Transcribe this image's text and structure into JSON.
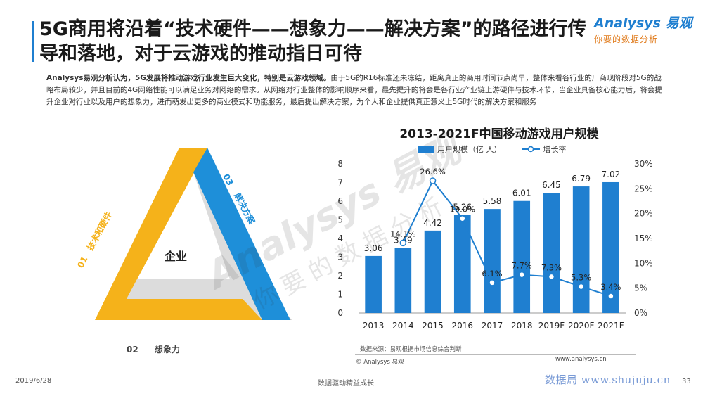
{
  "header": {
    "title": "5G商用将沿着“技术硬件——想象力——解决方案”的路径进行传导和落地，对于云游戏的推动指日可待",
    "logo_main": "Analysys 易观",
    "logo_sub": "你要的数据分析"
  },
  "intro": {
    "lead": "Analysys易观分析认为，5G发展将推动游戏行业发生巨大变化，特别是云游戏领域。",
    "body": "由于5G的R16标准还未冻结，距离真正的商用时间节点尚早，整体来看各行业的厂商现阶段对5G的战略布局较少，并且目前的4G网络性能可以满足业务对网络的需求。从网络对行业整体的影响顺序来看，最先提升的将会是各行业产业链上游硬件与技术环节，当企业具备核心能力后，将会提升企业对行业以及用户的想象力，进而萌发出更多的商业模式和功能服务，最后提出解决方案，为个人和企业提供真正意义上5G时代的解决方案和服务"
  },
  "triangle": {
    "center": "企业",
    "side1_num": "01",
    "side1_label": "技术和硬件",
    "side2_num": "02",
    "side2_label": "想象力",
    "side3_num": "03",
    "side3_label": "解决方案",
    "colors": {
      "yellow": "#f5b21a",
      "blue": "#1e8fd9",
      "gray": "#d9d9d9"
    }
  },
  "watermark": {
    "w1": "Analysys 易观",
    "w2": "你要的数据分析"
  },
  "chart_data": {
    "type": "bar",
    "title": "2013-2021F中国移动游戏用户规模",
    "categories": [
      "2013",
      "2014",
      "2015",
      "2016",
      "2017",
      "2018",
      "2019F",
      "2020F",
      "2021F"
    ],
    "series": [
      {
        "name": "用户规模（亿 人）",
        "type": "bar",
        "axis": "left",
        "color": "#1f7fd0",
        "values": [
          3.06,
          3.49,
          4.42,
          5.26,
          5.58,
          6.01,
          6.45,
          6.79,
          7.02
        ],
        "labels": [
          "3.06",
          "3.49",
          "4.42",
          "5.26",
          "5.58",
          "6.01",
          "6.45",
          "6.79",
          "7.02"
        ]
      },
      {
        "name": "增长率",
        "type": "line",
        "axis": "right",
        "color": "#1f7fd0",
        "values": [
          null,
          14.1,
          26.6,
          19.0,
          6.1,
          7.7,
          7.3,
          5.3,
          3.4
        ],
        "labels": [
          "",
          "14.1%",
          "26.6%",
          "19.0%",
          "6.1%",
          "7.7%",
          "7.3%",
          "5.3%",
          "3.4%"
        ]
      }
    ],
    "ylim_left": [
      0,
      8
    ],
    "yticks_left": [
      "0",
      "1",
      "2",
      "3",
      "4",
      "5",
      "6",
      "7",
      "8"
    ],
    "ylim_right": [
      0,
      30
    ],
    "yticks_right": [
      "0%",
      "5%",
      "10%",
      "15%",
      "20%",
      "25%",
      "30%"
    ],
    "grid": false,
    "legend_position": "top"
  },
  "footer": {
    "source": "数据来源：易观根据市场信息综合判断",
    "copyright": "© Analysys 易观",
    "website": "www.analysys.cn",
    "date": "2019/6/28",
    "slogan": "数据驱动精益成长",
    "watermark_site": "数据局  www.shujuju.cn",
    "page": "33"
  }
}
